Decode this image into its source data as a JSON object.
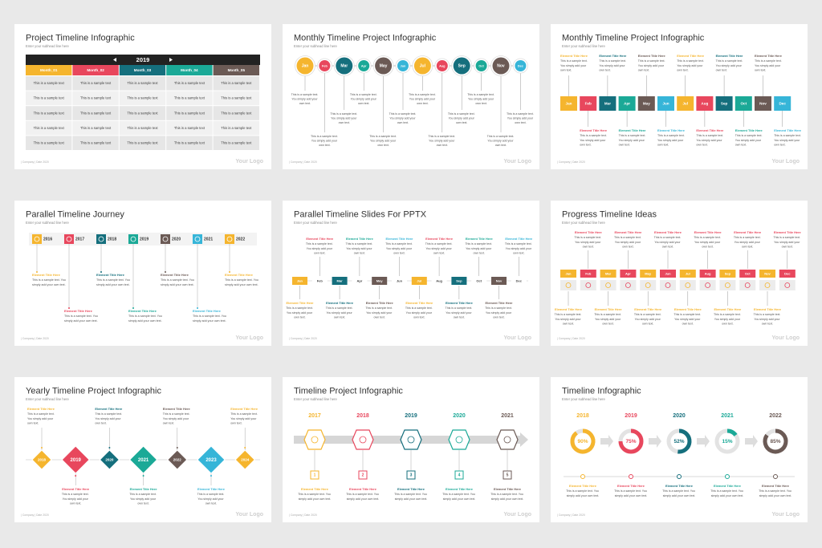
{
  "slides": [
    {
      "title": "Project Timeline Infographic",
      "subtitle": "Enter your subhead line here",
      "footer": "| Company | Date 2020",
      "logo": "Your Logo",
      "year": "2019",
      "headers": [
        "Month_01",
        "Month_02",
        "Month_03",
        "Month_04",
        "Month_05"
      ],
      "rows": [
        [
          "This is a sample text",
          "This is a sample text",
          "This is a sample text",
          "This is a sample text",
          "This is a sample text"
        ],
        [
          "This is a sample text",
          "This is a sample text",
          "This is a sample text",
          "This is a sample text",
          "This is a sample text"
        ],
        [
          "This is a sample text",
          "This is a sample text",
          "This is a sample text",
          "This is a sample text",
          "This is a sample text"
        ],
        [
          "This is a sample text",
          "This is a sample text",
          "This is a sample text",
          "This is a sample text",
          "This is a sample text"
        ],
        [
          "This is a sample text",
          "This is a sample text",
          "This is a sample text",
          "This is a sample text",
          "This is a sample text"
        ]
      ]
    },
    {
      "title": "Monthly Timeline Project Infographic",
      "subtitle": "Enter your subhead line here",
      "footer": "| Company | Date 2020",
      "logo": "Your Logo",
      "months": [
        "Jan",
        "Feb",
        "Mar",
        "Apr",
        "May",
        "Jun",
        "Jul",
        "Aug",
        "Sep",
        "Oct",
        "Nov",
        "Dec"
      ],
      "notes": [
        "This is a sample text. You simply add your own text.",
        "This is a sample text. You simply add your own text.",
        "This is a sample text. You simply add your own text.",
        "This is a sample text. You simply add your own text.",
        "This is a sample text. You simply add your own text.",
        "This is a sample text. You simply add your own text.",
        "This is a sample text. You simply add your own text.",
        "This is a sample text. You simply add your own text.",
        "This is a sample text. You simply add your own text.",
        "This is a sample text. You simply add your own text.",
        "This is a sample text. You simply add your own text.",
        "This is a sample text. You simply add your own text."
      ]
    },
    {
      "title": "Monthly Timeline Project Infographic",
      "subtitle": "Enter your subhead line here",
      "footer": "| Company | Date 2020",
      "logo": "Your Logo",
      "months": [
        "Jan",
        "Feb",
        "Mar",
        "Apr",
        "May",
        "Jun",
        "Jul",
        "Aug",
        "Sep",
        "Oct",
        "Nov",
        "Dec"
      ],
      "items": [
        {
          "title": "Element Title Here",
          "text": "This is a sample text. You simply add your own text."
        },
        {
          "title": "Element Title Here",
          "text": "This is a sample text. You simply add your own text."
        },
        {
          "title": "Element Title Here",
          "text": "This is a sample text. You simply add your own text."
        },
        {
          "title": "Element Title Here",
          "text": "This is a sample text. You simply add your own text."
        },
        {
          "title": "Element Title Here",
          "text": "This is a sample text. You simply add your own text."
        },
        {
          "title": "Element Title Here",
          "text": "This is a sample text. You simply add your own text."
        },
        {
          "title": "Element Title Here",
          "text": "This is a sample text. You simply add your own text."
        },
        {
          "title": "Element Title Here",
          "text": "This is a sample text. You simply add your own text."
        },
        {
          "title": "Element Title Here",
          "text": "This is a sample text. You simply add your own text."
        },
        {
          "title": "Element Title Here",
          "text": "This is a sample text. You simply add your own text."
        },
        {
          "title": "Element Title Here",
          "text": "This is a sample text. You simply add your own text."
        },
        {
          "title": "Element Title Here",
          "text": "This is a sample text. You simply add your own text."
        }
      ]
    },
    {
      "title": "Parallel Timeline Journey",
      "subtitle": "Enter your subhead line here",
      "footer": "| Company | Date 2020",
      "logo": "Your Logo",
      "years": [
        "2016",
        "2017",
        "2018",
        "2019",
        "2020",
        "2021",
        "2022"
      ],
      "items": [
        {
          "title": "Element Title Here",
          "text": "This is a sample text. You simply add your own text."
        },
        {
          "title": "Element Title Here",
          "text": "This is a sample text. You simply add your own text."
        },
        {
          "title": "Element Title Here",
          "text": "This is a sample text. You simply add your own text."
        },
        {
          "title": "Element Title Here",
          "text": "This is a sample text. You simply add your own text."
        },
        {
          "title": "Element Title Here",
          "text": "This is a sample text. You simply add your own text."
        },
        {
          "title": "Element Title Here",
          "text": "This is a sample text. You simply add your own text."
        },
        {
          "title": "Element Title Here",
          "text": "This is a sample text. You simply add your own text."
        }
      ]
    },
    {
      "title": "Parallel Timeline Slides For PPTX",
      "subtitle": "Enter your subhead line here",
      "footer": "| Company | Date 2020",
      "logo": "Your Logo",
      "months": [
        "Jan",
        "Feb",
        "Mar",
        "Apr",
        "May",
        "Jun",
        "Jul",
        "Aug",
        "Sep",
        "Oct",
        "Nov",
        "Dec"
      ],
      "items": [
        {
          "title": "Element Title Here",
          "text": "This is a sample text. You simply add your own text."
        },
        {
          "title": "Element Title Here",
          "text": "This is a sample text. You simply add your own text."
        },
        {
          "title": "Element Title Here",
          "text": "This is a sample text. You simply add your own text."
        },
        {
          "title": "Element Title Here",
          "text": "This is a sample text. You simply add your own text."
        },
        {
          "title": "Element Title Here",
          "text": "This is a sample text. You simply add your own text."
        },
        {
          "title": "Element Title Here",
          "text": "This is a sample text. You simply add your own text."
        },
        {
          "title": "Element Title Here",
          "text": "This is a sample text. You simply add your own text."
        },
        {
          "title": "Element Title Here",
          "text": "This is a sample text. You simply add your own text."
        },
        {
          "title": "Element Title Here",
          "text": "This is a sample text. You simply add your own text."
        },
        {
          "title": "Element Title Here",
          "text": "This is a sample text. You simply add your own text."
        },
        {
          "title": "Element Title Here",
          "text": "This is a sample text. You simply add your own text."
        },
        {
          "title": "Element Title Here",
          "text": "This is a sample text. You simply add your own text."
        }
      ]
    },
    {
      "title": "Progress Timeline Ideas",
      "subtitle": "Enter your subhead line here",
      "footer": "| Company | Date 2020",
      "logo": "Your Logo",
      "months": [
        "Jan",
        "Feb",
        "Mar",
        "Apr",
        "May",
        "Jun",
        "Jul",
        "Aug",
        "Sep",
        "Oct",
        "Nov",
        "Dec"
      ],
      "items": [
        {
          "title": "Element Title Here",
          "text": "This is a sample text. You simply add your own text."
        },
        {
          "title": "Element Title Here",
          "text": "This is a sample text. You simply add your own text."
        },
        {
          "title": "Element Title Here",
          "text": "This is a sample text. You simply add your own text."
        },
        {
          "title": "Element Title Here",
          "text": "This is a sample text. You simply add your own text."
        },
        {
          "title": "Element Title Here",
          "text": "This is a sample text. You simply add your own text."
        },
        {
          "title": "Element Title Here",
          "text": "This is a sample text. You simply add your own text."
        },
        {
          "title": "Element Title Here",
          "text": "This is a sample text. You simply add your own text."
        },
        {
          "title": "Element Title Here",
          "text": "This is a sample text. You simply add your own text."
        },
        {
          "title": "Element Title Here",
          "text": "This is a sample text. You simply add your own text."
        },
        {
          "title": "Element Title Here",
          "text": "This is a sample text. You simply add your own text."
        },
        {
          "title": "Element Title Here",
          "text": "This is a sample text. You simply add your own text."
        },
        {
          "title": "Element Title Here",
          "text": "This is a sample text. You simply add your own text."
        }
      ]
    },
    {
      "title": "Yearly Timeline Project Infographic",
      "subtitle": "Enter your subhead line here",
      "footer": "| Company | Date 2020",
      "logo": "Your Logo",
      "years": [
        "2018",
        "2019",
        "2020",
        "2021",
        "2022",
        "2023",
        "2024"
      ],
      "items": [
        {
          "title": "Element Title Here",
          "text": "This is a sample text. You simply add your own text."
        },
        {
          "title": "Element Title Here",
          "text": "This is a sample text. You simply add your own text."
        },
        {
          "title": "Element Title Here",
          "text": "This is a sample text. You simply add your own text."
        },
        {
          "title": "Element Title Here",
          "text": "This is a sample text. You simply add your own text."
        },
        {
          "title": "Element Title Here",
          "text": "This is a sample text. You simply add your own text."
        },
        {
          "title": "Element Title Here",
          "text": "This is a sample text. You simply add your own text."
        },
        {
          "title": "Element Title Here",
          "text": "This is a sample text. You simply add your own text."
        }
      ]
    },
    {
      "title": "Timeline Project Infographic",
      "subtitle": "Enter your subhead line here",
      "footer": "| Company | Date 2020",
      "logo": "Your Logo",
      "years": [
        "2017",
        "2018",
        "2019",
        "2020",
        "2021"
      ],
      "steps": [
        1,
        2,
        3,
        4,
        5
      ],
      "items": [
        {
          "title": "Element Title Here",
          "text": "This is a sample text. You simply add your own text."
        },
        {
          "title": "Element Title Here",
          "text": "This is a sample text. You simply add your own text."
        },
        {
          "title": "Element Title Here",
          "text": "This is a sample text. You simply add your own text."
        },
        {
          "title": "Element Title Here",
          "text": "This is a sample text. You simply add your own text."
        },
        {
          "title": "Element Title Here",
          "text": "This is a sample text. You simply add your own text."
        }
      ]
    },
    {
      "title": "Timeline Infographic",
      "subtitle": "Enter your subhead line here",
      "footer": "| Company | Date 2020",
      "logo": "Your Logo",
      "years": [
        "2018",
        "2019",
        "2020",
        "2021",
        "2022"
      ],
      "values": [
        90,
        75,
        52,
        15,
        85
      ],
      "value_labels": [
        "90%",
        "75%",
        "52%",
        "15%",
        "85%"
      ],
      "items": [
        {
          "title": "Element Title Here",
          "text": "This is a sample text. You simply add your own text."
        },
        {
          "title": "Element Title Here",
          "text": "This is a sample text. You simply add your own text."
        },
        {
          "title": "Element Title Here",
          "text": "This is a sample text. You simply add your own text."
        },
        {
          "title": "Element Title Here",
          "text": "This is a sample text. You simply add your own text."
        },
        {
          "title": "Element Title Here",
          "text": "This is a sample text. You simply add your own text."
        }
      ]
    }
  ]
}
